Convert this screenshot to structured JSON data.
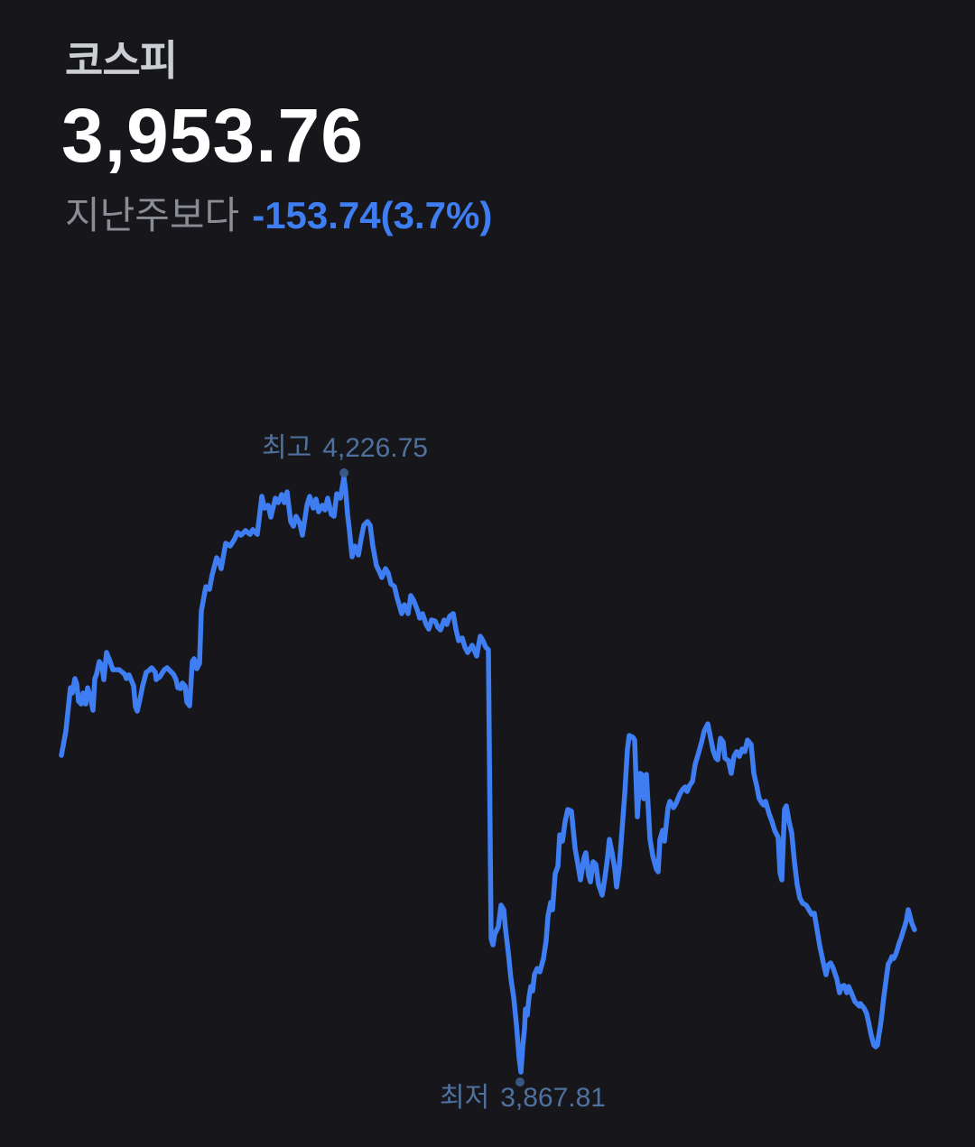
{
  "header": {
    "title": "코스피",
    "price": "3,953.76",
    "change_label": "지난주보다",
    "change_value": "-153.74(3.7%)"
  },
  "colors": {
    "background": "#17171b",
    "line": "#3e7df2",
    "accent_change": "#3f7ef2",
    "title": "#cbced3",
    "price": "#ffffff",
    "change_label_gray": "#8a8d93",
    "annotation": "#4f719f",
    "marker_dot": "#3d5f8f"
  },
  "chart_data": {
    "type": "line",
    "series_name": "코스피",
    "x_unit": "time-axis-position-px",
    "y_unit": "index-points",
    "ylim": [
      3867.81,
      4226.75
    ],
    "grid": false,
    "axes_labels_visible": false,
    "legend": "none",
    "current_value": 3953.76,
    "change_value": -153.74,
    "change_percent": -3.7,
    "high": {
      "label": "최고",
      "value": 4226.75,
      "display": "4,226.75",
      "x": 381
    },
    "low": {
      "label": "최저",
      "value": 3867.81,
      "display": "3,867.81",
      "x": 577
    },
    "points": [
      [
        68,
        4059.0
      ],
      [
        73,
        4073.7
      ],
      [
        78,
        4099.8
      ],
      [
        80,
        4096.6
      ],
      [
        83,
        4105.3
      ],
      [
        85,
        4102.0
      ],
      [
        87,
        4091.7
      ],
      [
        90,
        4090.0
      ],
      [
        92,
        4096.6
      ],
      [
        95,
        4090.0
      ],
      [
        97,
        4099.8
      ],
      [
        100,
        4094.4
      ],
      [
        103,
        4086.2
      ],
      [
        105,
        4105.3
      ],
      [
        107,
        4108.0
      ],
      [
        110,
        4115.6
      ],
      [
        113,
        4112.9
      ],
      [
        115,
        4104.7
      ],
      [
        118,
        4121.1
      ],
      [
        122,
        4115.6
      ],
      [
        125,
        4110.7
      ],
      [
        132,
        4110.7
      ],
      [
        138,
        4108.0
      ],
      [
        140,
        4105.3
      ],
      [
        143,
        4107.5
      ],
      [
        148,
        4100.9
      ],
      [
        150,
        4088.4
      ],
      [
        152,
        4085.7
      ],
      [
        155,
        4092.8
      ],
      [
        158,
        4100.9
      ],
      [
        162,
        4109.1
      ],
      [
        165,
        4110.2
      ],
      [
        168,
        4111.8
      ],
      [
        172,
        4109.1
      ],
      [
        173,
        4104.7
      ],
      [
        177,
        4106.4
      ],
      [
        182,
        4110.7
      ],
      [
        185,
        4111.8
      ],
      [
        192,
        4108.0
      ],
      [
        195,
        4104.7
      ],
      [
        197,
        4099.8
      ],
      [
        200,
        4099.3
      ],
      [
        202,
        4102.6
      ],
      [
        205,
        4100.9
      ],
      [
        207,
        4091.1
      ],
      [
        210,
        4088.9
      ],
      [
        213,
        4115.6
      ],
      [
        215,
        4117.3
      ],
      [
        218,
        4111.3
      ],
      [
        221,
        4114.5
      ],
      [
        223,
        4146.1
      ],
      [
        228,
        4160.8
      ],
      [
        232,
        4159.2
      ],
      [
        235,
        4167.9
      ],
      [
        240,
        4178.3
      ],
      [
        243,
        4175.6
      ],
      [
        245,
        4171.7
      ],
      [
        250,
        4187.0
      ],
      [
        255,
        4185.3
      ],
      [
        260,
        4189.7
      ],
      [
        263,
        4193.5
      ],
      [
        267,
        4191.9
      ],
      [
        272,
        4194.6
      ],
      [
        277,
        4192.4
      ],
      [
        280,
        4195.2
      ],
      [
        285,
        4192.4
      ],
      [
        290,
        4215.3
      ],
      [
        293,
        4208.2
      ],
      [
        297,
        4209.9
      ],
      [
        300,
        4202.8
      ],
      [
        305,
        4214.2
      ],
      [
        308,
        4211.5
      ],
      [
        312,
        4216.4
      ],
      [
        315,
        4211.5
      ],
      [
        318,
        4218.0
      ],
      [
        322,
        4200.1
      ],
      [
        325,
        4197.3
      ],
      [
        328,
        4203.3
      ],
      [
        332,
        4199.0
      ],
      [
        335,
        4191.9
      ],
      [
        340,
        4209.9
      ],
      [
        343,
        4215.3
      ],
      [
        347,
        4208.2
      ],
      [
        350,
        4213.7
      ],
      [
        353,
        4206.0
      ],
      [
        357,
        4209.9
      ],
      [
        360,
        4207.1
      ],
      [
        363,
        4214.2
      ],
      [
        367,
        4204.4
      ],
      [
        370,
        4203.3
      ],
      [
        373,
        4216.9
      ],
      [
        377,
        4214.2
      ],
      [
        381,
        4226.75
      ],
      [
        383,
        4218.0
      ],
      [
        385,
        4204.4
      ],
      [
        387,
        4195.2
      ],
      [
        390,
        4178.8
      ],
      [
        393,
        4185.3
      ],
      [
        397,
        4179.9
      ],
      [
        400,
        4189.7
      ],
      [
        403,
        4197.9
      ],
      [
        407,
        4200.1
      ],
      [
        410,
        4197.9
      ],
      [
        413,
        4185.3
      ],
      [
        417,
        4173.4
      ],
      [
        420,
        4170.1
      ],
      [
        423,
        4166.3
      ],
      [
        427,
        4171.7
      ],
      [
        430,
        4169.0
      ],
      [
        433,
        4162.5
      ],
      [
        437,
        4160.8
      ],
      [
        440,
        4153.8
      ],
      [
        445,
        4144.5
      ],
      [
        448,
        4149.9
      ],
      [
        452,
        4144.5
      ],
      [
        455,
        4155.4
      ],
      [
        458,
        4152.7
      ],
      [
        462,
        4147.2
      ],
      [
        465,
        4141.8
      ],
      [
        468,
        4144.5
      ],
      [
        472,
        4138.0
      ],
      [
        475,
        4135.2
      ],
      [
        478,
        4140.7
      ],
      [
        482,
        4140.1
      ],
      [
        485,
        4136.3
      ],
      [
        488,
        4134.7
      ],
      [
        492,
        4140.7
      ],
      [
        495,
        4138.0
      ],
      [
        498,
        4142.9
      ],
      [
        502,
        4144.5
      ],
      [
        505,
        4135.2
      ],
      [
        508,
        4128.2
      ],
      [
        512,
        4129.8
      ],
      [
        515,
        4124.3
      ],
      [
        518,
        4121.1
      ],
      [
        523,
        4125.4
      ],
      [
        528,
        4118.9
      ],
      [
        532,
        4130.9
      ],
      [
        535,
        4128.2
      ],
      [
        538,
        4124.3
      ],
      [
        541,
        4122.7
      ],
      [
        544,
        3948.4
      ],
      [
        546,
        3944.6
      ],
      [
        548,
        3951.1
      ],
      [
        552,
        3955.5
      ],
      [
        555,
        3968.6
      ],
      [
        558,
        3965.8
      ],
      [
        560,
        3953.9
      ],
      [
        563,
        3940.2
      ],
      [
        566,
        3923.9
      ],
      [
        569,
        3913.0
      ],
      [
        572,
        3896.7
      ],
      [
        575,
        3876.5
      ],
      [
        577,
        3867.81
      ],
      [
        579,
        3883.1
      ],
      [
        581,
        3893.9
      ],
      [
        582,
        3905.9
      ],
      [
        584,
        3902.1
      ],
      [
        586,
        3913.0
      ],
      [
        588,
        3919.5
      ],
      [
        590,
        3916.8
      ],
      [
        592,
        3926.6
      ],
      [
        595,
        3930.4
      ],
      [
        598,
        3928.3
      ],
      [
        602,
        3936.4
      ],
      [
        605,
        3947.3
      ],
      [
        607,
        3962.0
      ],
      [
        610,
        3970.2
      ],
      [
        612,
        3965.8
      ],
      [
        615,
        3987.6
      ],
      [
        618,
        3992.0
      ],
      [
        620,
        4011.0
      ],
      [
        623,
        4007.2
      ],
      [
        626,
        4019.2
      ],
      [
        629,
        4026.3
      ],
      [
        633,
        4025.2
      ],
      [
        637,
        4002.9
      ],
      [
        640,
        3993.6
      ],
      [
        643,
        3983.8
      ],
      [
        647,
        3997.4
      ],
      [
        649,
        4000.2
      ],
      [
        652,
        3986.5
      ],
      [
        654,
        3982.7
      ],
      [
        657,
        3994.7
      ],
      [
        660,
        3993.1
      ],
      [
        663,
        3981.1
      ],
      [
        667,
        3974.6
      ],
      [
        670,
        3984.9
      ],
      [
        673,
        3997.4
      ],
      [
        675,
        4008.3
      ],
      [
        678,
        4000.2
      ],
      [
        681,
        3990.4
      ],
      [
        683,
        3979.5
      ],
      [
        686,
        3992.0
      ],
      [
        689,
        4013.8
      ],
      [
        692,
        4035.6
      ],
      [
        695,
        4062.8
      ],
      [
        697,
        4071.0
      ],
      [
        701,
        4069.9
      ],
      [
        703,
        4068.2
      ],
      [
        706,
        4021.9
      ],
      [
        709,
        4048.1
      ],
      [
        711,
        4047.5
      ],
      [
        713,
        4032.8
      ],
      [
        716,
        4047.5
      ],
      [
        720,
        4008.3
      ],
      [
        723,
        3998.5
      ],
      [
        727,
        3990.4
      ],
      [
        729,
        3988.7
      ],
      [
        731,
        4008.3
      ],
      [
        734,
        4013.8
      ],
      [
        736,
        4007.2
      ],
      [
        740,
        4027.4
      ],
      [
        742,
        4031.2
      ],
      [
        746,
        4027.4
      ],
      [
        749,
        4030.1
      ],
      [
        753,
        4035.6
      ],
      [
        756,
        4038.3
      ],
      [
        759,
        4039.9
      ],
      [
        761,
        4037.2
      ],
      [
        764,
        4041.0
      ],
      [
        767,
        4043.2
      ],
      [
        770,
        4053.5
      ],
      [
        773,
        4059.0
      ],
      [
        777,
        4066.6
      ],
      [
        780,
        4073.7
      ],
      [
        784,
        4078.0
      ],
      [
        787,
        4069.9
      ],
      [
        790,
        4061.7
      ],
      [
        793,
        4057.3
      ],
      [
        795,
        4056.3
      ],
      [
        798,
        4069.3
      ],
      [
        801,
        4067.1
      ],
      [
        803,
        4057.3
      ],
      [
        807,
        4055.7
      ],
      [
        810,
        4048.1
      ],
      [
        813,
        4058.4
      ],
      [
        816,
        4061.2
      ],
      [
        819,
        4058.4
      ],
      [
        822,
        4062.8
      ],
      [
        825,
        4061.2
      ],
      [
        828,
        4068.2
      ],
      [
        832,
        4065.5
      ],
      [
        835,
        4048.1
      ],
      [
        838,
        4041.0
      ],
      [
        841,
        4032.8
      ],
      [
        844,
        4030.1
      ],
      [
        846,
        4029.0
      ],
      [
        848,
        4031.2
      ],
      [
        852,
        4023.6
      ],
      [
        855,
        4019.2
      ],
      [
        858,
        4013.8
      ],
      [
        862,
        4009.4
      ],
      [
        864,
        3988.2
      ],
      [
        866,
        3983.8
      ],
      [
        869,
        4026.3
      ],
      [
        871,
        4028.5
      ],
      [
        874,
        4019.2
      ],
      [
        877,
        4012.1
      ],
      [
        880,
        3994.7
      ],
      [
        883,
        3981.1
      ],
      [
        886,
        3972.9
      ],
      [
        889,
        3969.7
      ],
      [
        893,
        3968.6
      ],
      [
        896,
        3965.8
      ],
      [
        899,
        3963.1
      ],
      [
        902,
        3963.7
      ],
      [
        905,
        3953.9
      ],
      [
        908,
        3944.1
      ],
      [
        912,
        3933.7
      ],
      [
        915,
        3926.6
      ],
      [
        917,
        3932.1
      ],
      [
        920,
        3933.7
      ],
      [
        923,
        3930.4
      ],
      [
        927,
        3923.9
      ],
      [
        930,
        3915.7
      ],
      [
        932,
        3919.5
      ],
      [
        935,
        3920.1
      ],
      [
        938,
        3915.7
      ],
      [
        940,
        3919.5
      ],
      [
        943,
        3915.7
      ],
      [
        945,
        3913.0
      ],
      [
        947,
        3910.3
      ],
      [
        950,
        3908.7
      ],
      [
        952,
        3907.6
      ],
      [
        953,
        3909.2
      ],
      [
        957,
        3906.5
      ],
      [
        960,
        3903.2
      ],
      [
        963,
        3895.6
      ],
      [
        965,
        3890.1
      ],
      [
        968,
        3884.1
      ],
      [
        970,
        3883.1
      ],
      [
        972,
        3884.1
      ],
      [
        973,
        3888.5
      ],
      [
        975,
        3895.0
      ],
      [
        977,
        3903.2
      ],
      [
        978,
        3908.7
      ],
      [
        980,
        3917.4
      ],
      [
        982,
        3925.5
      ],
      [
        984,
        3933.2
      ],
      [
        986,
        3934.8
      ],
      [
        988,
        3937.5
      ],
      [
        990,
        3936.4
      ],
      [
        992,
        3938.6
      ],
      [
        994,
        3941.9
      ],
      [
        996,
        3945.7
      ],
      [
        998,
        3948.4
      ],
      [
        1000,
        3952.2
      ],
      [
        1002,
        3955.5
      ],
      [
        1004,
        3959.3
      ],
      [
        1006,
        3965.8
      ],
      [
        1008,
        3962.0
      ],
      [
        1010,
        3957.7
      ],
      [
        1013,
        3953.76
      ]
    ]
  }
}
